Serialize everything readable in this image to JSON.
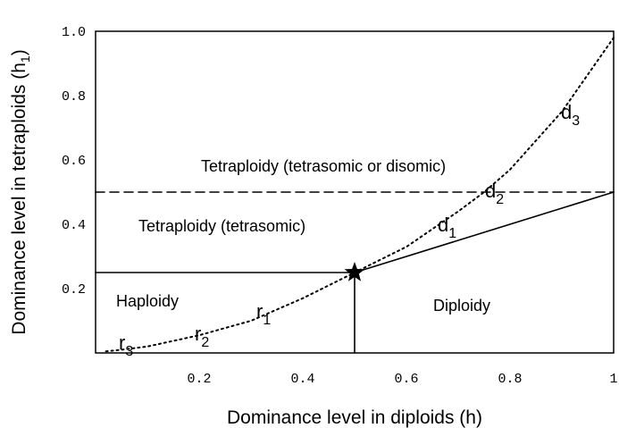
{
  "chart_data": {
    "type": "line",
    "xlabel": "Dominance level in diploids (h)",
    "ylabel": [
      "Dominance level in tetraploids (h",
      "1",
      ")"
    ],
    "xlim": [
      0,
      1
    ],
    "ylim": [
      0,
      1
    ],
    "xticks": [
      0.2,
      0.4,
      0.6,
      0.8,
      {
        "value": 1,
        "label": "1"
      }
    ],
    "yticks": [
      0.2,
      0.4,
      0.6,
      0.8,
      {
        "value": 1,
        "label": "1.0"
      }
    ],
    "grid": false,
    "series": [
      {
        "style": "dotted",
        "color": "#000000",
        "x": [
          0.02,
          0.05,
          0.1,
          0.2,
          0.3,
          0.4,
          0.5,
          0.6,
          0.7,
          0.75,
          0.8,
          0.9,
          1.0
        ],
        "values": [
          0.005,
          0.01,
          0.02,
          0.055,
          0.1,
          0.17,
          0.25,
          0.33,
          0.44,
          0.5,
          0.57,
          0.75,
          0.98
        ]
      },
      {
        "style": "dashed",
        "color": "#000000",
        "x": [
          0,
          1
        ],
        "values": [
          0.5,
          0.5
        ]
      },
      {
        "style": "solid",
        "color": "#000000",
        "x": [
          0,
          0.5
        ],
        "values": [
          0.25,
          0.25
        ]
      },
      {
        "style": "solid",
        "color": "#000000",
        "x": [
          0.5,
          0.5
        ],
        "values": [
          0,
          0.25
        ]
      },
      {
        "style": "solid",
        "color": "#000000",
        "x": [
          0.5,
          1
        ],
        "values": [
          0.25,
          0.5
        ]
      }
    ],
    "star": [
      0.5,
      0.25
    ],
    "regions": [
      "Tetraploidy (tetrasomic or disomic)",
      "Tetraploidy (tetrasomic)",
      "Haploidy",
      "Diploidy"
    ],
    "curve_labels": [
      {
        "text": "r",
        "sub": "3"
      },
      {
        "text": "r",
        "sub": "2"
      },
      {
        "text": "r",
        "sub": "1"
      },
      {
        "text": "d",
        "sub": "1"
      },
      {
        "text": "d",
        "sub": "2"
      },
      {
        "text": "d",
        "sub": "3"
      }
    ]
  }
}
